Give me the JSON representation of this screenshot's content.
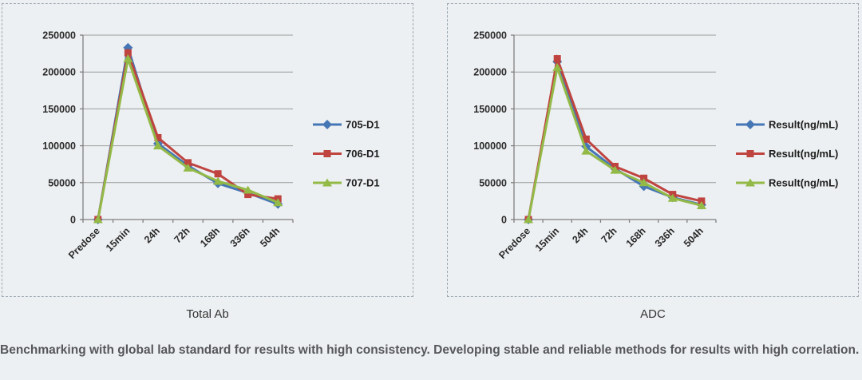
{
  "page": {
    "background": "#edf0f2",
    "footer_text": "Benchmarking with global lab standard for results with high consistency. Developing stable and reliable methods for results with high correlation."
  },
  "colors": {
    "series_blue": "#4576b5",
    "series_red": "#bf4440",
    "series_green": "#93b947",
    "gridline": "#9b9b9b",
    "axis": "#7f7f7f",
    "panel_border": "#9ea8b0",
    "tick_text": "#2a2a2a",
    "footer_text": "#56575a"
  },
  "chart_data": [
    {
      "type": "line",
      "title": "Total Ab",
      "categories": [
        "Predose",
        "15min",
        "24h",
        "72h",
        "168h",
        "336h",
        "504h"
      ],
      "series": [
        {
          "name": "705-D1",
          "marker": "diamond",
          "color": "#4576b5",
          "values": [
            0,
            233000,
            103000,
            73000,
            49000,
            36000,
            21000
          ]
        },
        {
          "name": "706-D1",
          "marker": "square",
          "color": "#bf4440",
          "values": [
            0,
            226000,
            111000,
            77000,
            62000,
            34000,
            28000
          ]
        },
        {
          "name": "707-D1",
          "marker": "triangle",
          "color": "#93b947",
          "values": [
            0,
            218000,
            100000,
            70000,
            52000,
            40000,
            23000
          ]
        }
      ],
      "ylim": [
        0,
        250000
      ],
      "yticks": [
        0,
        50000,
        100000,
        150000,
        200000,
        250000
      ],
      "grid": true,
      "legend_position": "right"
    },
    {
      "type": "line",
      "title": "ADC",
      "categories": [
        "Predose",
        "15min",
        "24h",
        "72h",
        "168h",
        "336h",
        "504h"
      ],
      "series": [
        {
          "name": "Result(ng/mL)",
          "marker": "diamond",
          "color": "#4576b5",
          "values": [
            0,
            214000,
            99000,
            69000,
            45000,
            30000,
            20000
          ]
        },
        {
          "name": "Result(ng/mL)",
          "marker": "square",
          "color": "#bf4440",
          "values": [
            0,
            218000,
            109000,
            72000,
            56000,
            34000,
            25000
          ]
        },
        {
          "name": "Result(ng/mL)",
          "marker": "triangle",
          "color": "#93b947",
          "values": [
            0,
            206000,
            93000,
            67000,
            50000,
            29000,
            19000
          ]
        }
      ],
      "ylim": [
        0,
        250000
      ],
      "yticks": [
        0,
        50000,
        100000,
        150000,
        200000,
        250000
      ],
      "grid": true,
      "legend_position": "right"
    }
  ]
}
